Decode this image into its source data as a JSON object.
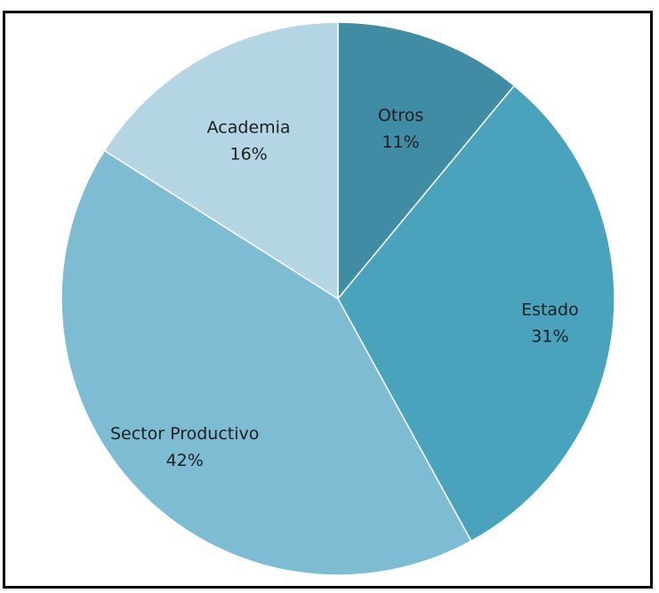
{
  "chart_data": {
    "type": "pie",
    "start_angle_deg": 0,
    "direction": "clockwise",
    "slices": [
      {
        "label": "Otros",
        "value": 11,
        "value_text": "11%",
        "color": "#3f8ca4"
      },
      {
        "label": "Estado",
        "value": 31,
        "value_text": "31%",
        "color": "#4aa3bd"
      },
      {
        "label": "Sector Productivo",
        "value": 42,
        "value_text": "42%",
        "color": "#7ebcd4"
      },
      {
        "label": "Academia",
        "value": 16,
        "value_text": "16%",
        "color": "#b4d5e3"
      }
    ],
    "title": "",
    "legend": "none"
  }
}
